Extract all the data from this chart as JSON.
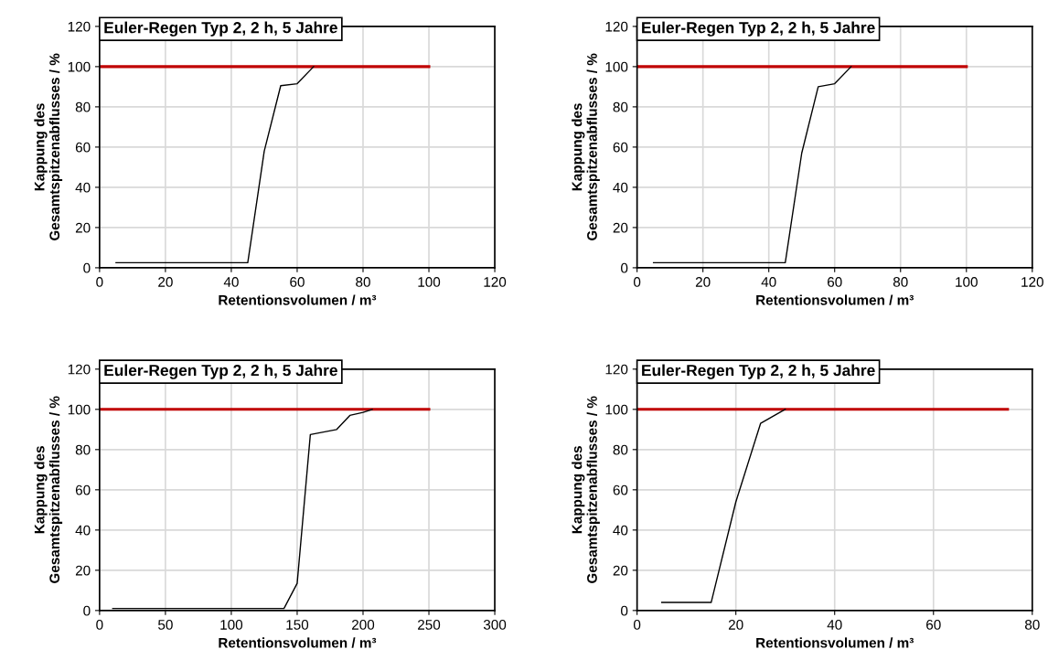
{
  "chart_data": [
    {
      "type": "line",
      "title": "Euler-Regen Typ 2, 2 h, 5 Jahre",
      "xlabel": "Retentionsvolumen / m³",
      "ylabel": "Kappung des\nGesamtspitzenabflusses / %",
      "xlim": [
        0,
        120
      ],
      "xticks": [
        0,
        20,
        40,
        60,
        80,
        100,
        120
      ],
      "ylim": [
        0,
        120
      ],
      "yticks": [
        0,
        20,
        40,
        60,
        80,
        100,
        120
      ],
      "grid": true,
      "series": [
        {
          "color": "#c00000",
          "x": [
            0,
            100
          ],
          "values": [
            100,
            100
          ]
        },
        {
          "color": "#000000",
          "x": [
            5,
            45,
            50,
            55,
            60,
            65
          ],
          "values": [
            2.5,
            2.5,
            58,
            90.5,
            91.5,
            100
          ]
        }
      ]
    },
    {
      "type": "line",
      "title": "Euler-Regen Typ 2, 2 h, 5 Jahre",
      "xlabel": "Retentionsvolumen / m³",
      "ylabel": "Kappung des\nGesamtspitzenabflusses / %",
      "xlim": [
        0,
        120
      ],
      "xticks": [
        0,
        20,
        40,
        60,
        80,
        100,
        120
      ],
      "ylim": [
        0,
        120
      ],
      "yticks": [
        0,
        20,
        40,
        60,
        80,
        100,
        120
      ],
      "grid": true,
      "series": [
        {
          "color": "#c00000",
          "x": [
            0,
            100
          ],
          "values": [
            100,
            100
          ]
        },
        {
          "color": "#000000",
          "x": [
            5,
            45,
            50,
            55,
            60,
            65
          ],
          "values": [
            2.5,
            2.5,
            57,
            90,
            91.5,
            100
          ]
        }
      ]
    },
    {
      "type": "line",
      "title": "Euler-Regen Typ 2, 2 h, 5 Jahre",
      "xlabel": "Retentionsvolumen / m³",
      "ylabel": "Kappung des\nGesamtspitzenabflusses / %",
      "xlim": [
        0,
        300
      ],
      "xticks": [
        0,
        50,
        100,
        150,
        200,
        250,
        300
      ],
      "ylim": [
        0,
        120
      ],
      "yticks": [
        0,
        20,
        40,
        60,
        80,
        100,
        120
      ],
      "grid": true,
      "series": [
        {
          "color": "#c00000",
          "x": [
            0,
            250
          ],
          "values": [
            100,
            100
          ]
        },
        {
          "color": "#000000",
          "x": [
            10,
            140,
            150,
            160,
            180,
            190,
            200,
            207
          ],
          "values": [
            1,
            1,
            13.5,
            87.5,
            90,
            97,
            98.5,
            100
          ]
        }
      ]
    },
    {
      "type": "line",
      "title": "Euler-Regen Typ 2, 2 h, 5 Jahre",
      "xlabel": "Retentionsvolumen / m³",
      "ylabel": "Kappung des\nGesamtspitzenabflusses / %",
      "xlim": [
        0,
        80
      ],
      "xticks": [
        0,
        20,
        40,
        60,
        80
      ],
      "ylim": [
        0,
        120
      ],
      "yticks": [
        0,
        20,
        40,
        60,
        80,
        100,
        120
      ],
      "grid": true,
      "series": [
        {
          "color": "#c00000",
          "x": [
            0,
            75
          ],
          "values": [
            100,
            100
          ]
        },
        {
          "color": "#000000",
          "x": [
            5,
            15,
            20,
            25,
            30
          ],
          "values": [
            4,
            4,
            54,
            93,
            100
          ]
        }
      ]
    }
  ]
}
